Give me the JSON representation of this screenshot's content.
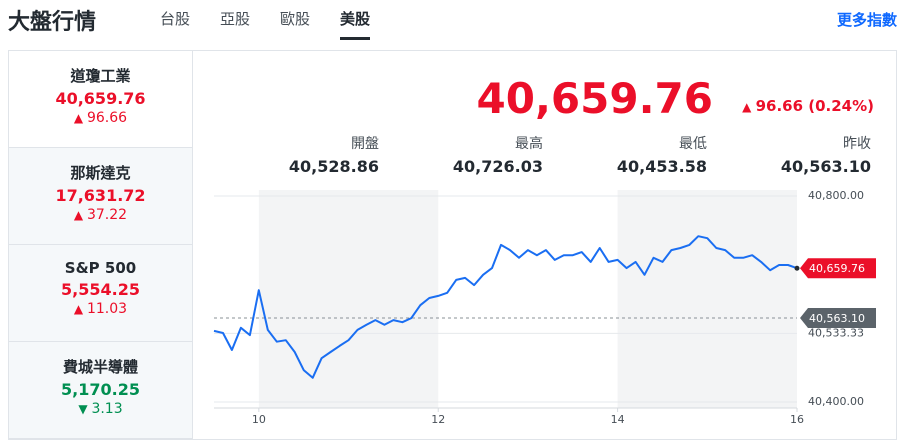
{
  "header": {
    "title": "大盤行情",
    "more": "更多指數"
  },
  "tabs": [
    "台股",
    "亞股",
    "歐股",
    "美股"
  ],
  "active_tab": 3,
  "indices": [
    {
      "name": "道瓊工業",
      "value": "40,659.76",
      "change": "96.66",
      "direction": "up"
    },
    {
      "name": "那斯達克",
      "value": "17,631.72",
      "change": "37.22",
      "direction": "up"
    },
    {
      "name": "S&P 500",
      "value": "5,554.25",
      "change": "11.03",
      "direction": "up"
    },
    {
      "name": "費城半導體",
      "value": "5,170.25",
      "change": "3.13",
      "direction": "down"
    }
  ],
  "quote": {
    "price": "40,659.76",
    "change": "96.66 (0.24%)",
    "stats": [
      {
        "label": "開盤",
        "value": "40,528.86"
      },
      {
        "label": "最高",
        "value": "40,726.03"
      },
      {
        "label": "最低",
        "value": "40,453.58"
      },
      {
        "label": "昨收",
        "value": "40,563.10"
      }
    ]
  },
  "chart_data": {
    "type": "line",
    "color": "#1a6ef2",
    "x": [
      9.5,
      9.6,
      9.7,
      9.8,
      9.9,
      10.0,
      10.1,
      10.2,
      10.3,
      10.4,
      10.5,
      10.6,
      10.7,
      10.8,
      10.9,
      11.0,
      11.1,
      11.2,
      11.3,
      11.4,
      11.5,
      11.6,
      11.7,
      11.8,
      11.9,
      12.0,
      12.1,
      12.2,
      12.3,
      12.4,
      12.5,
      12.6,
      12.7,
      12.8,
      12.9,
      13.0,
      13.1,
      13.2,
      13.3,
      13.4,
      13.5,
      13.6,
      13.7,
      13.8,
      13.9,
      14.0,
      14.1,
      14.2,
      14.3,
      14.4,
      14.5,
      14.6,
      14.7,
      14.8,
      14.9,
      15.0,
      15.1,
      15.2,
      15.3,
      15.4,
      15.5,
      15.6,
      15.7,
      15.8,
      15.9,
      16.0
    ],
    "values": [
      40538,
      40534,
      40501,
      40544,
      40530,
      40617,
      40540,
      40517,
      40520,
      40497,
      40462,
      40447,
      40485,
      40497,
      40509,
      40520,
      40540,
      40550,
      40559,
      40550,
      40559,
      40555,
      40563,
      40588,
      40602,
      40606,
      40612,
      40637,
      40641,
      40627,
      40647,
      40660,
      40705,
      40695,
      40680,
      40695,
      40685,
      40695,
      40676,
      40685,
      40685,
      40691,
      40672,
      40699,
      40672,
      40676,
      40660,
      40672,
      40647,
      40680,
      40672,
      40695,
      40699,
      40705,
      40722,
      40718,
      40699,
      40695,
      40680,
      40680,
      40685,
      40672,
      40656,
      40666,
      40666,
      40659.76
    ],
    "xlim": [
      9.5,
      16
    ],
    "xticks": [
      10,
      12,
      14,
      16
    ],
    "ylim": [
      40400,
      40800
    ],
    "yticks": [
      {
        "value": 40800,
        "label": "40,800.00"
      },
      {
        "value": 40533.33,
        "label": "40,533.33"
      },
      {
        "value": 40400,
        "label": "40,400.00"
      }
    ],
    "last": {
      "value": 40659.76,
      "label": "40,659.76",
      "color": "#eb0f29"
    },
    "reference": {
      "value": 40563.1,
      "label": "40,563.10",
      "color": "#5b636a"
    }
  }
}
